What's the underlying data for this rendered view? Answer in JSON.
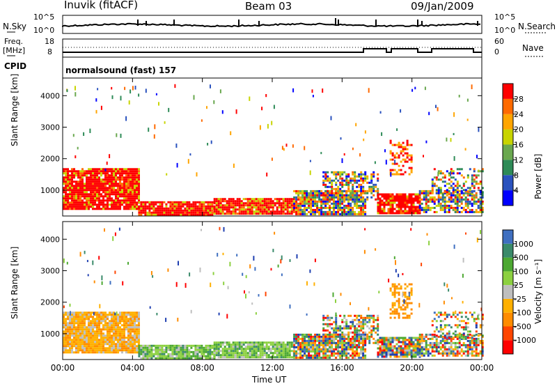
{
  "header": {
    "station": "Inuvik (fitACF)",
    "beam": "Beam 03",
    "date": "09/Jan/2009"
  },
  "left_labels": {
    "nsky": "N.Sky",
    "freq": "Freq.",
    "freq_unit": "[MHz]",
    "cpid": "CPID"
  },
  "right_labels": {
    "nsearch": "N.Search",
    "nave": "Nave"
  },
  "mini_ticks": {
    "nsky_top": "10^5",
    "nsky_bottom": "10^0",
    "nsearch_top": "10^5",
    "nsearch_bottom": "10^0",
    "freq_top": "18",
    "freq_bottom": "8",
    "nave_top": "60",
    "nave_bottom": "0"
  },
  "cpid_text": "normalsound (fast) 157",
  "xlabel": "Time UT",
  "colors": {
    "power": [
      "#0000ff",
      "#2a52be",
      "#2e8b57",
      "#6aa84f",
      "#c8d400",
      "#ffa500",
      "#ff6a00",
      "#ff0000"
    ],
    "velocity": [
      "#ff0000",
      "#ff4500",
      "#ff8c00",
      "#ffb000",
      "#bebebe",
      "#8cd040",
      "#4ca832",
      "#3a8a6a",
      "#3f6fc0",
      "#1f3fb0"
    ]
  },
  "chart_data": [
    {
      "type": "heatmap",
      "panel": "power",
      "ylabel": "Slant Range [km]",
      "xlim": [
        "00:00",
        "24:00"
      ],
      "ylim": [
        180,
        4560
      ],
      "xticks": [
        "00:00",
        "04:00",
        "08:00",
        "12:00",
        "16:00",
        "20:00",
        "00:00"
      ],
      "yticks": [
        "1000",
        "2000",
        "3000",
        "4000"
      ],
      "colorbar": {
        "label": "Power [dB]",
        "range": [
          0,
          32
        ],
        "ticks": [
          "4",
          "8",
          "12",
          "16",
          "20",
          "24",
          "28"
        ]
      }
    },
    {
      "type": "heatmap",
      "panel": "velocity",
      "ylabel": "Slant Range [km]",
      "xlim": [
        "00:00",
        "24:00"
      ],
      "ylim": [
        180,
        4560
      ],
      "xticks": [
        "00:00",
        "04:00",
        "08:00",
        "12:00",
        "16:00",
        "20:00",
        "00:00"
      ],
      "yticks": [
        "1000",
        "2000",
        "3000",
        "4000"
      ],
      "colorbar": {
        "label": "Velocity [m s⁻¹]",
        "ticks": [
          "-1000",
          "-500",
          "-100",
          "-25",
          "25",
          "100",
          "500",
          "1000"
        ]
      }
    }
  ]
}
